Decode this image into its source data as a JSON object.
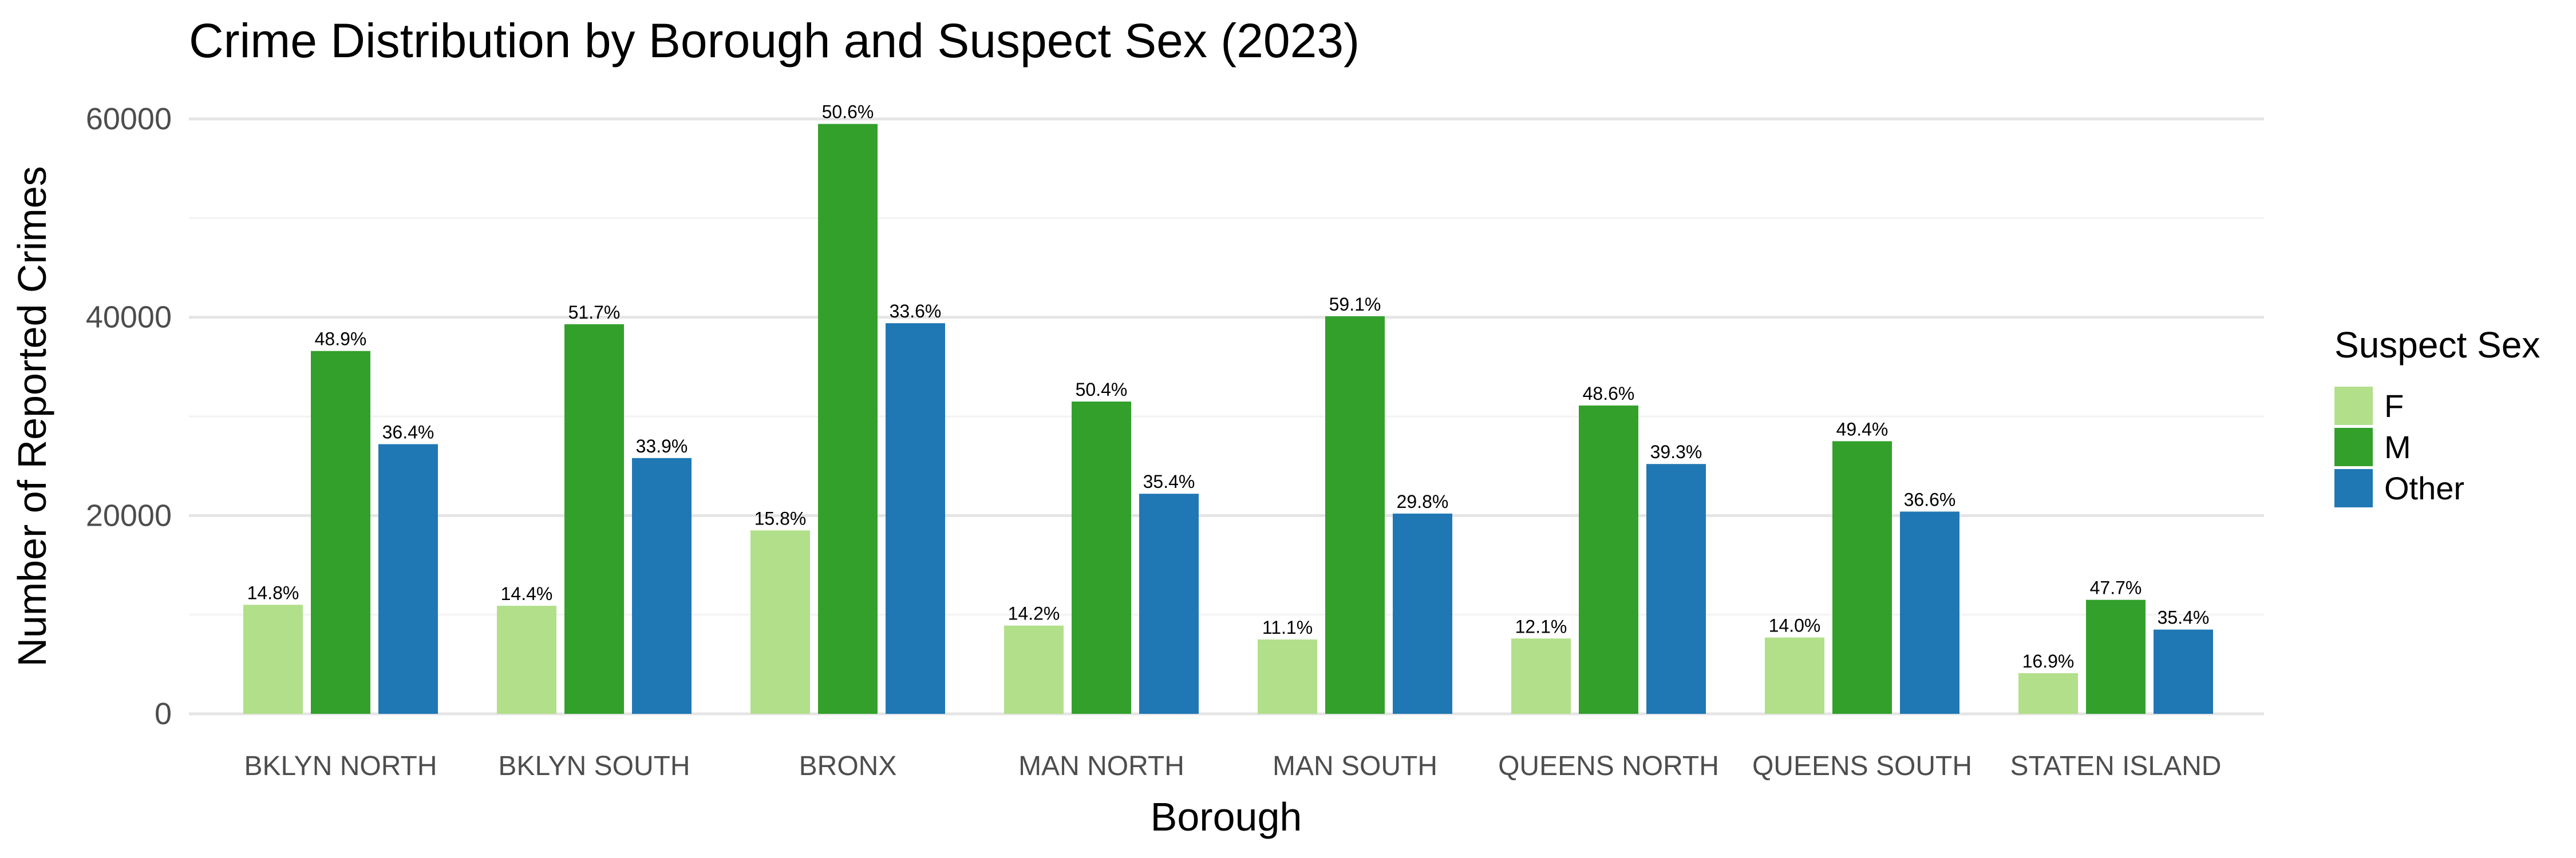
{
  "chart_data": {
    "type": "bar",
    "title": "Crime Distribution by Borough and Suspect Sex (2023)",
    "xlabel": "Borough",
    "ylabel": "Number of Reported Crimes",
    "ylim": [
      0,
      60000
    ],
    "yticks": [
      0,
      20000,
      40000,
      60000
    ],
    "ytick_labels": [
      "0",
      "20000",
      "40000",
      "60000"
    ],
    "grid": true,
    "legend_position": "right",
    "legend_title": "Suspect Sex",
    "categories": [
      "BKLYN NORTH",
      "BKLYN SOUTH",
      "BRONX",
      "MAN NORTH",
      "MAN SOUTH",
      "QUEENS NORTH",
      "QUEENS SOUTH",
      "STATEN ISLAND"
    ],
    "series": [
      {
        "name": "F",
        "color": "#b2df8a",
        "values": [
          11000,
          10900,
          18500,
          8900,
          7500,
          7600,
          7700,
          4100
        ],
        "labels": [
          "14.8%",
          "14.4%",
          "15.8%",
          "14.2%",
          "11.1%",
          "12.1%",
          "14.0%",
          "16.9%"
        ]
      },
      {
        "name": "M",
        "color": "#33a02c",
        "values": [
          36600,
          39300,
          59500,
          31500,
          40100,
          31100,
          27500,
          11500
        ],
        "labels": [
          "48.9%",
          "51.7%",
          "50.6%",
          "50.4%",
          "59.1%",
          "48.6%",
          "49.4%",
          "47.7%"
        ]
      },
      {
        "name": "Other",
        "color": "#1f78b4",
        "values": [
          27200,
          25800,
          39400,
          22200,
          20200,
          25200,
          20400,
          8500
        ],
        "labels": [
          "36.4%",
          "33.9%",
          "33.6%",
          "35.4%",
          "29.8%",
          "39.3%",
          "36.6%",
          "35.4%"
        ]
      }
    ]
  }
}
